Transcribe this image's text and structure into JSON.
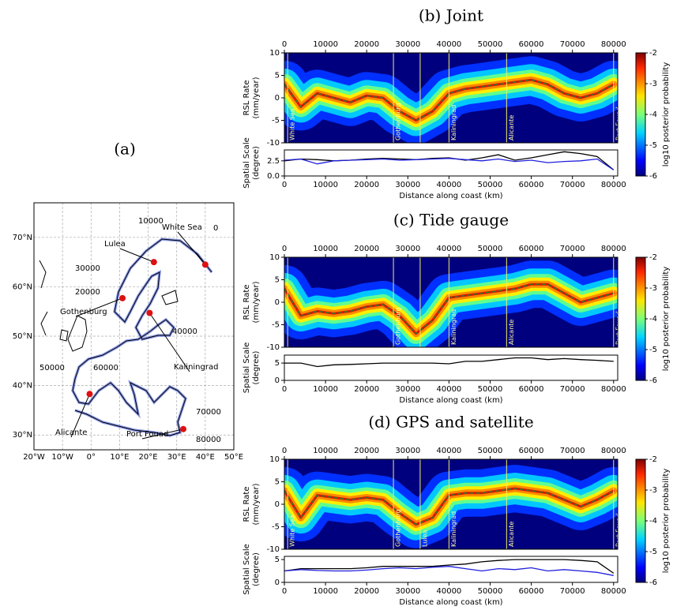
{
  "chart_data": [
    {
      "type": "map",
      "title": "(a)",
      "xlim": [
        -20,
        50
      ],
      "ylim": [
        27,
        77
      ],
      "xticks": [
        {
          "value": -20,
          "label": "20°W"
        },
        {
          "value": -10,
          "label": "10°W"
        },
        {
          "value": 0,
          "label": "0°"
        },
        {
          "value": 10,
          "label": "10°E"
        },
        {
          "value": 20,
          "label": "20°E"
        },
        {
          "value": 30,
          "label": "30°E"
        },
        {
          "value": 40,
          "label": "40°E"
        },
        {
          "value": 50,
          "label": "50°E"
        }
      ],
      "yticks": [
        {
          "value": 30,
          "label": "30°N"
        },
        {
          "value": 40,
          "label": "40°N"
        },
        {
          "value": 50,
          "label": "50°N"
        },
        {
          "value": 60,
          "label": "60°N"
        },
        {
          "value": 70,
          "label": "70°N"
        }
      ],
      "grid": true,
      "point_color": "#dd1111",
      "cities": [
        "White Sea",
        "Lulea",
        "Gothenburg",
        "Kaliningrad",
        "Alicante",
        "Port Fouad"
      ],
      "lon": [
        40,
        22,
        11,
        20.5,
        -0.5,
        32.3
      ],
      "lat": [
        64.5,
        65,
        57.7,
        54.7,
        38.3,
        31.2
      ],
      "distance_labels": [
        0,
        10000,
        20000,
        30000,
        40000,
        50000,
        60000,
        70000,
        80000
      ]
    },
    {
      "type": "heatmap",
      "title": "(b) Joint",
      "ylabel": [
        "RSL Rate",
        "(mm/year)"
      ],
      "xlim": [
        0,
        81000
      ],
      "xticks": [
        0,
        10000,
        20000,
        30000,
        40000,
        50000,
        60000,
        70000,
        80000
      ],
      "ylim": [
        -10,
        10
      ],
      "yticks": [
        -10,
        -5,
        0,
        5,
        10
      ],
      "clim": [
        -6,
        -2
      ],
      "cticks": [
        -6,
        -5,
        -4,
        -3,
        -2
      ],
      "clabel": "log10 posterior probability",
      "vlines": [
        800,
        26500,
        33000,
        40000,
        54000,
        80000
      ],
      "vline_labels": [
        "White Sea",
        "Gothenburg",
        null,
        "Kaliningrad",
        "Alicante",
        "Port Fouad"
      ],
      "x": [
        0,
        4000,
        8000,
        12000,
        16000,
        20000,
        24000,
        28000,
        32000,
        36000,
        40000,
        44000,
        48000,
        52000,
        56000,
        60000,
        64000,
        68000,
        72000,
        76000,
        80000
      ],
      "series": [
        {
          "color": "#2f7f2f",
          "values": [
            3,
            -2,
            1,
            0,
            -1,
            0.5,
            0,
            -3,
            -5,
            -3,
            1,
            2,
            2.5,
            3,
            3.5,
            4,
            3,
            1,
            0,
            1,
            3
          ]
        }
      ]
    },
    {
      "type": "line",
      "ylabel": [
        "Spatial Scale",
        "(degree)"
      ],
      "xlabel": "Distance along coast (km)",
      "xlim": [
        0,
        81000
      ],
      "xticks": [
        0,
        10000,
        20000,
        30000,
        40000,
        50000,
        60000,
        70000,
        80000
      ],
      "ylim": [
        0,
        4.3
      ],
      "yticks": [
        {
          "value": 0,
          "label": "0.0"
        },
        {
          "value": 2.5,
          "label": "2.5"
        }
      ],
      "x": [
        0,
        4000,
        8000,
        12000,
        16000,
        20000,
        24000,
        28000,
        32000,
        36000,
        40000,
        44000,
        48000,
        52000,
        56000,
        60000,
        64000,
        68000,
        72000,
        76000,
        80000
      ],
      "series": [
        {
          "color": "#000000",
          "values": [
            2.5,
            2.8,
            2.7,
            2.5,
            2.6,
            2.8,
            2.9,
            2.8,
            2.7,
            2.9,
            3.0,
            2.6,
            3.0,
            3.5,
            2.6,
            3.0,
            3.5,
            4.0,
            3.7,
            3.2,
            1.0
          ]
        },
        {
          "color": "#1f1fdd",
          "values": [
            2.6,
            2.8,
            2.0,
            2.5,
            2.6,
            2.7,
            2.8,
            2.6,
            2.7,
            2.8,
            2.9,
            2.7,
            2.5,
            2.8,
            2.4,
            2.6,
            2.2,
            2.4,
            2.5,
            2.8,
            1.0
          ]
        }
      ]
    },
    {
      "type": "heatmap",
      "title": "(c) Tide gauge",
      "ylabel": [
        "RSL Rate",
        "(mm/year)"
      ],
      "xlim": [
        0,
        81000
      ],
      "xticks": [
        0,
        10000,
        20000,
        30000,
        40000,
        50000,
        60000,
        70000,
        80000
      ],
      "ylim": [
        -10,
        10
      ],
      "yticks": [
        -10,
        -5,
        0,
        5,
        10
      ],
      "clim": [
        -6,
        -2
      ],
      "cticks": [
        -6,
        -5,
        -4,
        -3,
        -2
      ],
      "clabel": "log10 posterior probability",
      "vlines": [
        800,
        26500,
        33000,
        40000,
        54000,
        80000
      ],
      "vline_labels": [
        null,
        "Gothenburg",
        null,
        "Kaliningrad",
        "Alicante",
        "Port Fouad"
      ],
      "x": [
        0,
        4000,
        8000,
        12000,
        16000,
        20000,
        24000,
        28000,
        32000,
        36000,
        40000,
        44000,
        48000,
        52000,
        56000,
        60000,
        64000,
        68000,
        72000,
        76000,
        80000
      ],
      "series": [
        {
          "color": "#2f7f2f",
          "values": [
            3,
            -3,
            -2,
            -2.5,
            -2,
            -1,
            -0.5,
            -3,
            -7,
            -4,
            1,
            1.5,
            2,
            2.5,
            3,
            4,
            4,
            2,
            0,
            1,
            2
          ]
        }
      ]
    },
    {
      "type": "line",
      "ylabel": [
        "Spatial Scale",
        "(degree)"
      ],
      "xlabel": "Distance along coast (km)",
      "xlim": [
        0,
        81000
      ],
      "xticks": [
        0,
        10000,
        20000,
        30000,
        40000,
        50000,
        60000,
        70000,
        80000
      ],
      "ylim": [
        0,
        7.3
      ],
      "yticks": [
        0,
        5
      ],
      "x": [
        0,
        4000,
        8000,
        12000,
        16000,
        20000,
        24000,
        28000,
        32000,
        36000,
        40000,
        44000,
        48000,
        52000,
        56000,
        60000,
        64000,
        68000,
        72000,
        76000,
        80000
      ],
      "series": [
        {
          "color": "#000000",
          "values": [
            5,
            5,
            4,
            4.5,
            4.6,
            4.8,
            5,
            5,
            5,
            5,
            4.8,
            5.5,
            5.5,
            6,
            6.5,
            6.5,
            6,
            6.3,
            6,
            5.8,
            5.5
          ]
        }
      ]
    },
    {
      "type": "heatmap",
      "title": "(d) GPS and satellite",
      "ylabel": [
        "RSL Rate",
        "(mm/year)"
      ],
      "xlim": [
        0,
        81000
      ],
      "xticks": [
        0,
        10000,
        20000,
        30000,
        40000,
        50000,
        60000,
        70000,
        80000
      ],
      "ylim": [
        -10,
        10
      ],
      "yticks": [
        -10,
        -5,
        0,
        5,
        10
      ],
      "clim": [
        -6,
        -2
      ],
      "cticks": [
        -6,
        -5,
        -4,
        -3,
        -2
      ],
      "clabel": "log10 posterior probability",
      "vlines": [
        800,
        26500,
        33000,
        40000,
        54000,
        80000
      ],
      "vline_labels": [
        "White Sea",
        "Gothenburg",
        "Lulea",
        "Kaliningrad",
        "Alicante",
        "Port Fouad"
      ],
      "x": [
        0,
        4000,
        8000,
        12000,
        16000,
        20000,
        24000,
        28000,
        32000,
        36000,
        40000,
        44000,
        48000,
        52000,
        56000,
        60000,
        64000,
        68000,
        72000,
        76000,
        80000
      ],
      "series": [
        {
          "color": "#2f7f2f",
          "values": [
            3,
            -3,
            2,
            1.5,
            1,
            1.5,
            1,
            -2,
            -4.5,
            -3,
            2,
            2.5,
            2.5,
            3,
            3.5,
            3,
            2.5,
            1,
            -0.5,
            1,
            3
          ]
        }
      ]
    },
    {
      "type": "line",
      "ylabel": [
        "Spatial Scale",
        "(degree)"
      ],
      "xlabel": "Distance along coast (km)",
      "xlim": [
        0,
        81000
      ],
      "xticks": [
        0,
        10000,
        20000,
        30000,
        40000,
        50000,
        60000,
        70000,
        80000
      ],
      "ylim": [
        0,
        5.7
      ],
      "yticks": [
        0,
        5
      ],
      "x": [
        0,
        4000,
        8000,
        12000,
        16000,
        20000,
        24000,
        28000,
        32000,
        36000,
        40000,
        44000,
        48000,
        52000,
        56000,
        60000,
        64000,
        68000,
        72000,
        76000,
        80000
      ],
      "series": [
        {
          "color": "#000000",
          "values": [
            2.5,
            3,
            3,
            3,
            3,
            3.2,
            3.5,
            3.5,
            3.5,
            3.5,
            3.8,
            4,
            4.5,
            4.8,
            5,
            5,
            5,
            5,
            4.8,
            4.5,
            2
          ]
        },
        {
          "color": "#1f1fdd",
          "values": [
            2.5,
            2.8,
            2.6,
            2.5,
            2.5,
            2.7,
            3,
            3.2,
            3,
            3.3,
            3.5,
            3,
            2.5,
            3,
            2.8,
            3.2,
            2.5,
            2.8,
            2.5,
            2.2,
            1.5
          ]
        }
      ]
    }
  ]
}
